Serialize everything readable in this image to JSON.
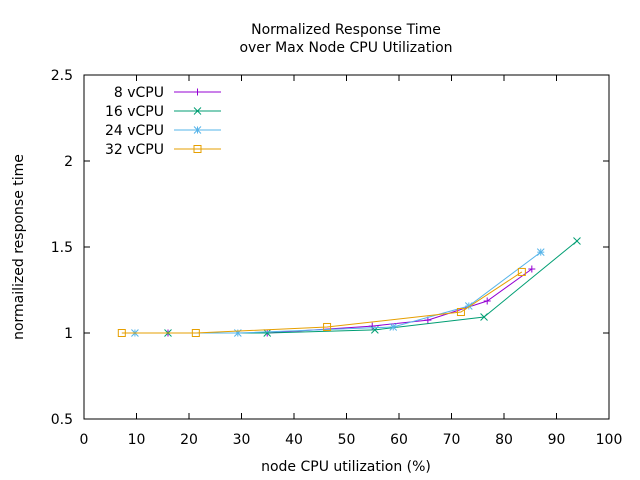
{
  "chart_data": {
    "type": "line",
    "title": "Normalized Response Time",
    "subtitle": "over Max Node CPU Utilization",
    "xlabel": "node CPU utilization (%)",
    "ylabel": "normailized response time",
    "xlim": [
      0,
      100
    ],
    "ylim": [
      0.5,
      2.5
    ],
    "xticks": [
      0,
      10,
      20,
      30,
      40,
      50,
      60,
      70,
      80,
      90,
      100
    ],
    "yticks": [
      0.5,
      1,
      1.5,
      2,
      2.5
    ],
    "xtick_labels": [
      "0",
      "10",
      "20",
      "30",
      "40",
      "50",
      "60",
      "70",
      "80",
      "90",
      "100"
    ],
    "ytick_labels": [
      "0.5",
      "1",
      "1.5",
      "2",
      "2.5"
    ],
    "grid": false,
    "legend_position": "top-left",
    "series": [
      {
        "name": "8 vCPU",
        "color": "#9400d3",
        "marker": "plus",
        "x": [
          16.0,
          34.9,
          54.9,
          65.5,
          76.8,
          85.3
        ],
        "y": [
          1.0,
          1.0,
          1.04,
          1.075,
          1.186,
          1.372
        ]
      },
      {
        "name": "16 vCPU",
        "color": "#009e73",
        "marker": "cross",
        "x": [
          16.0,
          34.9,
          55.4,
          76.2,
          93.9
        ],
        "y": [
          1.0,
          1.0,
          1.018,
          1.093,
          1.535
        ]
      },
      {
        "name": "24 vCPU",
        "color": "#56b4e9",
        "marker": "star",
        "x": [
          9.7,
          29.3,
          58.9,
          73.3,
          87.0
        ],
        "y": [
          1.0,
          1.0,
          1.035,
          1.157,
          1.47
        ]
      },
      {
        "name": "32 vCPU",
        "color": "#e69f00",
        "marker": "square",
        "x": [
          7.2,
          21.3,
          46.3,
          71.8,
          83.4
        ],
        "y": [
          1.0,
          1.0,
          1.035,
          1.122,
          1.355
        ]
      }
    ]
  }
}
